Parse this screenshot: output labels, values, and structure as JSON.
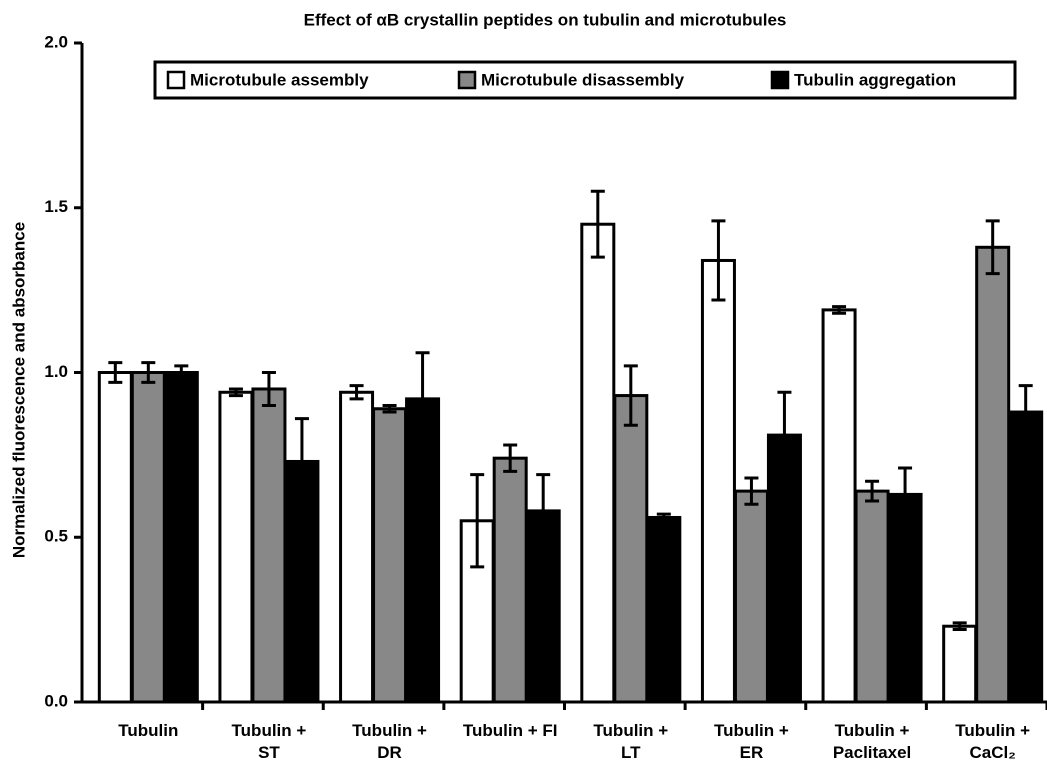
{
  "chart_data": {
    "type": "bar",
    "title": "Effect of αB crystallin peptides on tubulin and microtubules",
    "y_label": "Normalized fluorescence and absorbance",
    "categories": [
      "Tubulin",
      "Tubulin +\nST",
      "Tubulin +\nDR",
      "Tubulin + FI",
      "Tubulin +\nLT",
      "Tubulin +\nER",
      "Tubulin +\nPaclitaxel",
      "Tubulin +\nCaCl₂"
    ],
    "series": [
      {
        "name": "Microtubule assembly",
        "color": "#ffffff",
        "values": [
          1.0,
          0.94,
          0.94,
          0.55,
          1.45,
          1.34,
          1.19,
          0.23
        ],
        "errors": [
          0.03,
          0.01,
          0.02,
          0.14,
          0.1,
          0.12,
          0.01,
          0.01
        ]
      },
      {
        "name": "Microtubule disassembly",
        "color": "#888888",
        "values": [
          1.0,
          0.95,
          0.89,
          0.74,
          0.93,
          0.64,
          0.64,
          1.38
        ],
        "errors": [
          0.03,
          0.05,
          0.01,
          0.04,
          0.09,
          0.04,
          0.03,
          0.08
        ]
      },
      {
        "name": "Tubulin aggregation",
        "color": "#000000",
        "values": [
          1.0,
          0.73,
          0.92,
          0.58,
          0.56,
          0.81,
          0.63,
          0.88
        ],
        "errors": [
          0.02,
          0.13,
          0.14,
          0.11,
          0.01,
          0.13,
          0.08,
          0.08
        ]
      }
    ],
    "ylim": [
      0,
      2
    ],
    "yticks": [
      {
        "value": 0,
        "label": "0.0"
      },
      {
        "value": 0.5,
        "label": "0.5"
      },
      {
        "value": 1,
        "label": "1.0"
      },
      {
        "value": 1.5,
        "label": "1.5"
      },
      {
        "value": 2,
        "label": "2.0"
      }
    ],
    "legend": "top"
  }
}
